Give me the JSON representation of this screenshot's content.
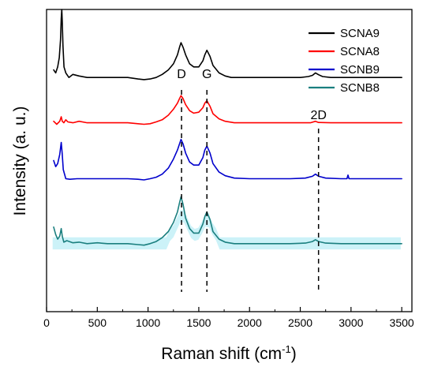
{
  "chart_data": {
    "type": "line",
    "title": "",
    "xlabel": "Raman shift (cm",
    "xlabel_superscript": "-1",
    "xlabel_suffix": ")",
    "ylabel": "Intensity (a. u.)",
    "xlim": [
      0,
      3600
    ],
    "xticks": [
      0,
      500,
      1000,
      1500,
      2000,
      2500,
      3000,
      3500
    ],
    "yticks_shown": false,
    "grid": false,
    "legend_position": "top-right",
    "peaks": [
      {
        "label": "D",
        "x": 1330
      },
      {
        "label": "G",
        "x": 1580
      },
      {
        "label": "2D",
        "x": 2680
      }
    ],
    "series": [
      {
        "name": "SCNA9",
        "color": "#000000",
        "baseline": 0.77,
        "points": [
          [
            70,
            0.8
          ],
          [
            90,
            0.79
          ],
          [
            110,
            0.81
          ],
          [
            125,
            0.84
          ],
          [
            138,
            0.9
          ],
          [
            145,
            0.97
          ],
          [
            150,
            1.0
          ],
          [
            155,
            0.96
          ],
          [
            162,
            0.88
          ],
          [
            172,
            0.81
          ],
          [
            190,
            0.79
          ],
          [
            220,
            0.775
          ],
          [
            260,
            0.785
          ],
          [
            320,
            0.78
          ],
          [
            400,
            0.775
          ],
          [
            500,
            0.775
          ],
          [
            600,
            0.775
          ],
          [
            700,
            0.775
          ],
          [
            800,
            0.775
          ],
          [
            900,
            0.77
          ],
          [
            960,
            0.768
          ],
          [
            1020,
            0.77
          ],
          [
            1080,
            0.775
          ],
          [
            1140,
            0.785
          ],
          [
            1200,
            0.8
          ],
          [
            1250,
            0.82
          ],
          [
            1290,
            0.85
          ],
          [
            1310,
            0.875
          ],
          [
            1325,
            0.89
          ],
          [
            1345,
            0.875
          ],
          [
            1370,
            0.85
          ],
          [
            1410,
            0.82
          ],
          [
            1450,
            0.81
          ],
          [
            1500,
            0.81
          ],
          [
            1540,
            0.83
          ],
          [
            1560,
            0.85
          ],
          [
            1580,
            0.865
          ],
          [
            1610,
            0.845
          ],
          [
            1640,
            0.815
          ],
          [
            1700,
            0.79
          ],
          [
            1760,
            0.78
          ],
          [
            1820,
            0.775
          ],
          [
            1900,
            0.775
          ],
          [
            2000,
            0.775
          ],
          [
            2100,
            0.775
          ],
          [
            2200,
            0.775
          ],
          [
            2300,
            0.775
          ],
          [
            2400,
            0.775
          ],
          [
            2500,
            0.775
          ],
          [
            2580,
            0.778
          ],
          [
            2620,
            0.782
          ],
          [
            2650,
            0.79
          ],
          [
            2680,
            0.784
          ],
          [
            2720,
            0.778
          ],
          [
            2800,
            0.775
          ],
          [
            3000,
            0.775
          ],
          [
            3200,
            0.775
          ],
          [
            3350,
            0.775
          ],
          [
            3500,
            0.775
          ]
        ]
      },
      {
        "name": "SCNA8",
        "color": "#ff0000",
        "baseline": 0.62,
        "points": [
          [
            70,
            0.63
          ],
          [
            100,
            0.62
          ],
          [
            130,
            0.63
          ],
          [
            145,
            0.645
          ],
          [
            155,
            0.63
          ],
          [
            170,
            0.625
          ],
          [
            190,
            0.635
          ],
          [
            210,
            0.628
          ],
          [
            260,
            0.625
          ],
          [
            320,
            0.63
          ],
          [
            400,
            0.625
          ],
          [
            500,
            0.625
          ],
          [
            600,
            0.625
          ],
          [
            700,
            0.625
          ],
          [
            800,
            0.625
          ],
          [
            900,
            0.622
          ],
          [
            960,
            0.62
          ],
          [
            1020,
            0.622
          ],
          [
            1080,
            0.628
          ],
          [
            1140,
            0.635
          ],
          [
            1200,
            0.65
          ],
          [
            1250,
            0.67
          ],
          [
            1290,
            0.69
          ],
          [
            1310,
            0.705
          ],
          [
            1325,
            0.715
          ],
          [
            1345,
            0.705
          ],
          [
            1370,
            0.685
          ],
          [
            1410,
            0.665
          ],
          [
            1450,
            0.657
          ],
          [
            1500,
            0.66
          ],
          [
            1540,
            0.675
          ],
          [
            1560,
            0.69
          ],
          [
            1580,
            0.698
          ],
          [
            1610,
            0.68
          ],
          [
            1640,
            0.655
          ],
          [
            1700,
            0.638
          ],
          [
            1760,
            0.63
          ],
          [
            1850,
            0.625
          ],
          [
            2000,
            0.625
          ],
          [
            2200,
            0.625
          ],
          [
            2400,
            0.625
          ],
          [
            2600,
            0.625
          ],
          [
            2650,
            0.63
          ],
          [
            2680,
            0.626
          ],
          [
            2800,
            0.625
          ],
          [
            3000,
            0.625
          ],
          [
            3200,
            0.625
          ],
          [
            3500,
            0.625
          ]
        ]
      },
      {
        "name": "SCNB9",
        "color": "#0000cc",
        "baseline": 0.44,
        "points": [
          [
            70,
            0.5
          ],
          [
            90,
            0.48
          ],
          [
            110,
            0.49
          ],
          [
            130,
            0.52
          ],
          [
            145,
            0.56
          ],
          [
            155,
            0.52
          ],
          [
            165,
            0.47
          ],
          [
            190,
            0.44
          ],
          [
            230,
            0.438
          ],
          [
            300,
            0.44
          ],
          [
            400,
            0.44
          ],
          [
            500,
            0.44
          ],
          [
            600,
            0.44
          ],
          [
            700,
            0.44
          ],
          [
            800,
            0.44
          ],
          [
            900,
            0.438
          ],
          [
            960,
            0.436
          ],
          [
            1020,
            0.44
          ],
          [
            1080,
            0.445
          ],
          [
            1140,
            0.455
          ],
          [
            1200,
            0.475
          ],
          [
            1250,
            0.505
          ],
          [
            1290,
            0.535
          ],
          [
            1310,
            0.555
          ],
          [
            1325,
            0.57
          ],
          [
            1345,
            0.555
          ],
          [
            1370,
            0.525
          ],
          [
            1410,
            0.495
          ],
          [
            1450,
            0.485
          ],
          [
            1500,
            0.485
          ],
          [
            1540,
            0.51
          ],
          [
            1560,
            0.535
          ],
          [
            1580,
            0.548
          ],
          [
            1610,
            0.525
          ],
          [
            1640,
            0.49
          ],
          [
            1700,
            0.462
          ],
          [
            1760,
            0.45
          ],
          [
            1850,
            0.442
          ],
          [
            2000,
            0.44
          ],
          [
            2200,
            0.44
          ],
          [
            2400,
            0.44
          ],
          [
            2550,
            0.442
          ],
          [
            2620,
            0.448
          ],
          [
            2650,
            0.455
          ],
          [
            2680,
            0.448
          ],
          [
            2750,
            0.442
          ],
          [
            2900,
            0.44
          ],
          [
            2960,
            0.44
          ],
          [
            2970,
            0.452
          ],
          [
            2980,
            0.44
          ],
          [
            3100,
            0.44
          ],
          [
            3300,
            0.44
          ],
          [
            3500,
            0.44
          ]
        ]
      },
      {
        "name": "SCNB8",
        "color": "#1a7f7f",
        "baseline": 0.22,
        "points": [
          [
            70,
            0.28
          ],
          [
            90,
            0.255
          ],
          [
            110,
            0.24
          ],
          [
            130,
            0.25
          ],
          [
            145,
            0.275
          ],
          [
            155,
            0.25
          ],
          [
            170,
            0.23
          ],
          [
            200,
            0.235
          ],
          [
            260,
            0.228
          ],
          [
            320,
            0.23
          ],
          [
            400,
            0.225
          ],
          [
            500,
            0.228
          ],
          [
            600,
            0.225
          ],
          [
            700,
            0.225
          ],
          [
            800,
            0.225
          ],
          [
            900,
            0.222
          ],
          [
            960,
            0.22
          ],
          [
            1020,
            0.225
          ],
          [
            1080,
            0.232
          ],
          [
            1140,
            0.245
          ],
          [
            1200,
            0.265
          ],
          [
            1250,
            0.295
          ],
          [
            1290,
            0.33
          ],
          [
            1310,
            0.36
          ],
          [
            1325,
            0.38
          ],
          [
            1345,
            0.355
          ],
          [
            1370,
            0.31
          ],
          [
            1410,
            0.275
          ],
          [
            1450,
            0.26
          ],
          [
            1500,
            0.26
          ],
          [
            1540,
            0.29
          ],
          [
            1560,
            0.315
          ],
          [
            1580,
            0.33
          ],
          [
            1610,
            0.305
          ],
          [
            1640,
            0.265
          ],
          [
            1700,
            0.24
          ],
          [
            1760,
            0.23
          ],
          [
            1850,
            0.225
          ],
          [
            2000,
            0.225
          ],
          [
            2200,
            0.225
          ],
          [
            2400,
            0.225
          ],
          [
            2550,
            0.227
          ],
          [
            2620,
            0.232
          ],
          [
            2650,
            0.238
          ],
          [
            2680,
            0.232
          ],
          [
            2750,
            0.227
          ],
          [
            2900,
            0.225
          ],
          [
            3100,
            0.225
          ],
          [
            3300,
            0.225
          ],
          [
            3500,
            0.225
          ]
        ]
      }
    ]
  }
}
